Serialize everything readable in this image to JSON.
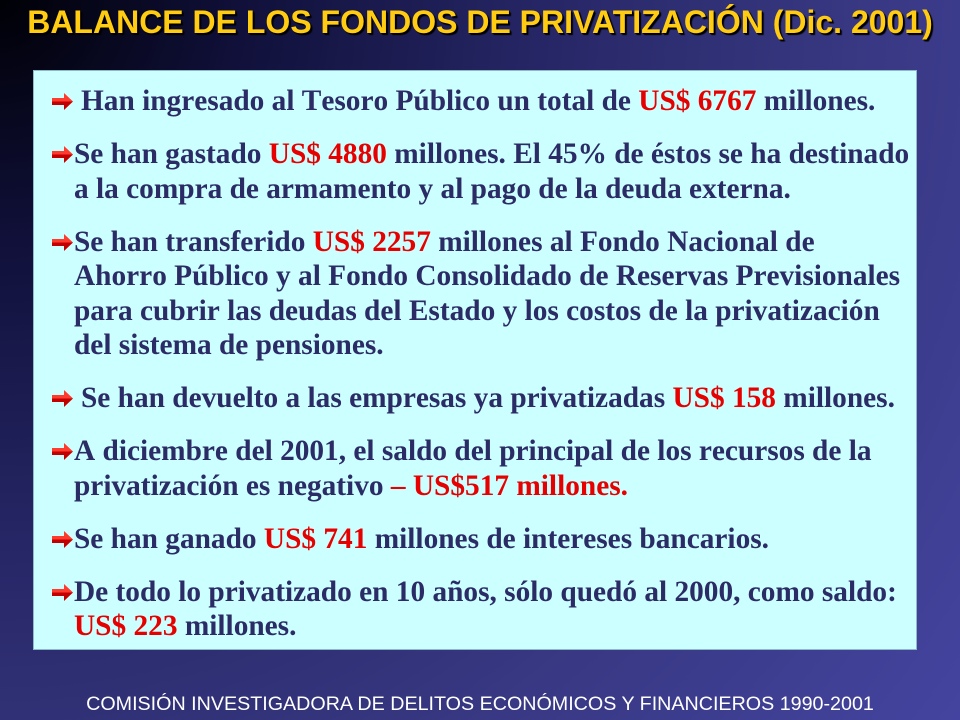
{
  "slide": {
    "title": "BALANCE DE LOS FONDOS DE PRIVATIZACIÓN (Dic. 2001)",
    "footer": "COMISIÓN INVESTIGADORA DE DELITOS ECONÓMICOS Y FINANCIEROS 1990-2001"
  },
  "bullets": [
    {
      "text": "Han ingresado al Tesoro Público un total de ",
      "amount": "US$ 6767",
      "after": " millones."
    },
    {
      "text": "Se han gastado ",
      "amount": "US$ 4880",
      "after": " millones. El 45% de éstos se ha destinado a la compra de armamento y al pago de la deuda externa."
    },
    {
      "text": "Se han transferido ",
      "amount": "US$ 2257",
      "after": " millones al Fondo Nacional de Ahorro Público y al Fondo Consolidado de Reservas Previsionales para cubrir las deudas del Estado y los costos de la privatización del sistema de pensiones."
    },
    {
      "text": "Se han devuelto a las empresas ya privatizadas ",
      "amount": "US$ 158",
      "after": " millones."
    },
    {
      "text": "A diciembre del 2001, el saldo del principal de los recursos de la privatización es negativo ",
      "amount": "– US$517 millones."
    },
    {
      "text": "Se han ganado ",
      "amount": "US$ 741",
      "after": " millones de intereses bancarios."
    },
    {
      "text": "De todo lo privatizado en 10 años, sólo quedó al 2000, como saldo: ",
      "amount": "US$ 223",
      "after": " millones."
    }
  ],
  "icons": {
    "bullet": "right-arrow-icon"
  },
  "colors": {
    "title": "#ffcc11",
    "text": "#2b2b66",
    "amount": "#e60000",
    "box": "#ccffff",
    "footer": "#ffffff",
    "bullet_arrow": "#e01010"
  }
}
